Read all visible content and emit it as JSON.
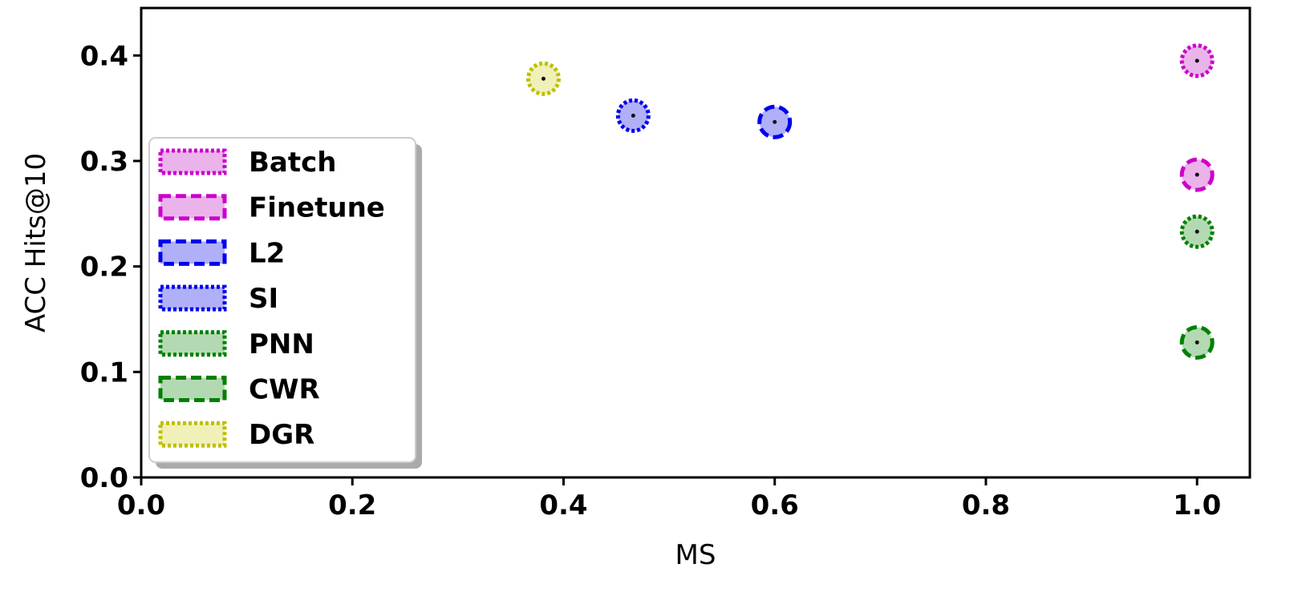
{
  "chart_data": {
    "type": "scatter",
    "xlabel": "MS",
    "ylabel": "ACC Hits@10",
    "xlim": [
      0.0,
      1.05
    ],
    "ylim": [
      0.0,
      0.445
    ],
    "xticks": [
      "0.0",
      "0.2",
      "0.4",
      "0.6",
      "0.8",
      "1.0"
    ],
    "yticks": [
      "0.0",
      "0.1",
      "0.2",
      "0.3",
      "0.4"
    ],
    "grid": false,
    "legend_position": "center-left",
    "series": [
      {
        "name": "Batch",
        "x": [
          1.0
        ],
        "y": [
          0.395
        ],
        "color": "#cc00cc",
        "fill": "#eab3ea",
        "linestyle": "dotted"
      },
      {
        "name": "Finetune",
        "x": [
          1.0
        ],
        "y": [
          0.287
        ],
        "color": "#cc00cc",
        "fill": "#eab3ea",
        "linestyle": "dashed"
      },
      {
        "name": "L2",
        "x": [
          0.6
        ],
        "y": [
          0.337
        ],
        "color": "#0000ee",
        "fill": "#b0b0f8",
        "linestyle": "dashed"
      },
      {
        "name": "SI",
        "x": [
          0.466
        ],
        "y": [
          0.343
        ],
        "color": "#0000ee",
        "fill": "#b0b0f8",
        "linestyle": "dotted"
      },
      {
        "name": "PNN",
        "x": [
          1.0
        ],
        "y": [
          0.233
        ],
        "color": "#008000",
        "fill": "#b3d9b3",
        "linestyle": "dotted"
      },
      {
        "name": "CWR",
        "x": [
          1.0
        ],
        "y": [
          0.128
        ],
        "color": "#008000",
        "fill": "#b3d9b3",
        "linestyle": "dashed"
      },
      {
        "name": "DGR",
        "x": [
          0.381
        ],
        "y": [
          0.378
        ],
        "color": "#bfbf00",
        "fill": "#f0f0b8",
        "linestyle": "dotted"
      }
    ]
  }
}
